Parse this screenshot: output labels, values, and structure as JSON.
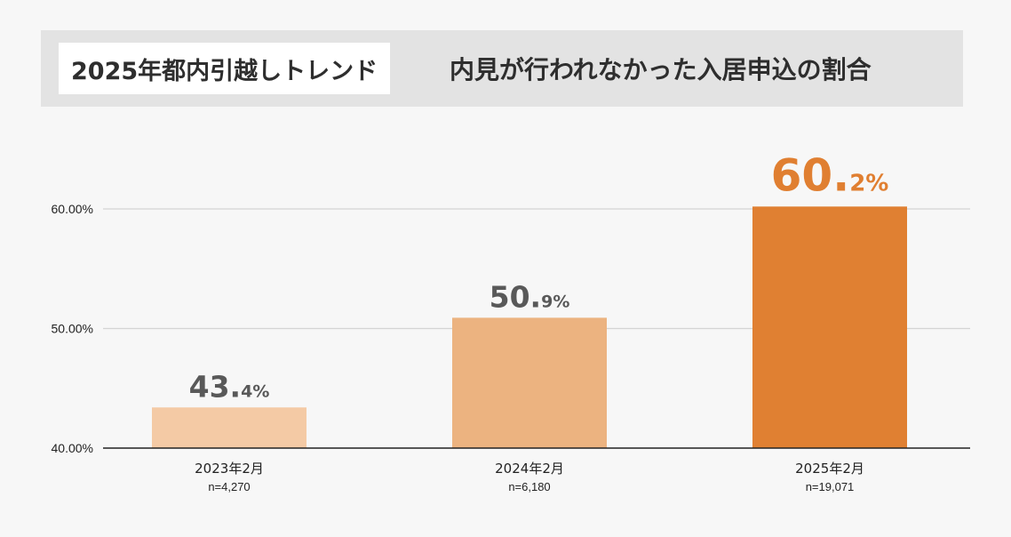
{
  "header": {
    "tag": "2025年都内引越しトレンド",
    "title": "内見が行われなかった入居申込の割合"
  },
  "colors": {
    "background": "#f7f7f7",
    "header_bg": "#e3e3e3",
    "label_gray": "#595959",
    "label_accent": "#e07f31",
    "grid": "#d4d4d4",
    "axis": "#222222"
  },
  "chart_data": {
    "type": "bar",
    "title": "内見が行われなかった入居申込の割合",
    "xlabel": "",
    "ylabel": "",
    "ylim": [
      40,
      62
    ],
    "yticks": [
      40,
      50,
      60
    ],
    "ytick_labels": [
      "40.00%",
      "50.00%",
      "60.00%"
    ],
    "grid": true,
    "categories": [
      "2023年2月",
      "2024年2月",
      "2025年2月"
    ],
    "sample_sizes": [
      "n=4,270",
      "n=6,180",
      "n=19,071"
    ],
    "values": [
      43.4,
      50.9,
      60.2
    ],
    "value_labels": [
      {
        "int": "43.",
        "dec": "4%"
      },
      {
        "int": "50.",
        "dec": "9%"
      },
      {
        "int": "60.",
        "dec": "2%"
      }
    ],
    "bar_colors": [
      "#f4caa5",
      "#ecb380",
      "#e08032"
    ],
    "highlight_index": 2
  }
}
